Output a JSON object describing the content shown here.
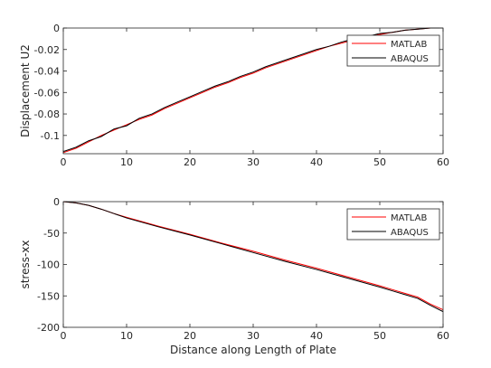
{
  "chart_data": [
    {
      "type": "line",
      "title": "",
      "xlabel": "",
      "ylabel": "Displacement U2",
      "xlim": [
        0,
        60
      ],
      "ylim": [
        -0.117,
        0
      ],
      "xticks": [
        "0",
        "10",
        "20",
        "30",
        "40",
        "50",
        "60"
      ],
      "yticks": [
        "0",
        "-0.02",
        "-0.04",
        "-0.06",
        "-0.08",
        "-0.1"
      ],
      "ytick_values": [
        0,
        -0.02,
        -0.04,
        -0.06,
        -0.08,
        -0.1
      ],
      "grid": false,
      "legend_position": "top-right",
      "series": [
        {
          "name": "MATLAB",
          "color": "#ff0000",
          "x": [
            0,
            2,
            4,
            6,
            8,
            10,
            12,
            14,
            16,
            18,
            20,
            22,
            24,
            26,
            28,
            30,
            32,
            34,
            36,
            38,
            40,
            42,
            44,
            46,
            48,
            50,
            52,
            54,
            56,
            58,
            60
          ],
          "y": [
            -0.116,
            -0.112,
            -0.106,
            -0.1,
            -0.095,
            -0.09,
            -0.085,
            -0.081,
            -0.075,
            -0.07,
            -0.065,
            -0.06,
            -0.055,
            -0.051,
            -0.046,
            -0.042,
            -0.037,
            -0.033,
            -0.029,
            -0.025,
            -0.021,
            -0.017,
            -0.014,
            -0.011,
            -0.008,
            -0.006,
            -0.004,
            -0.002,
            -0.001,
            0,
            0
          ]
        },
        {
          "name": "ABAQUS",
          "color": "#000000",
          "x": [
            0,
            2,
            4,
            6,
            8,
            10,
            12,
            14,
            16,
            18,
            20,
            22,
            24,
            26,
            28,
            30,
            32,
            34,
            36,
            38,
            40,
            42,
            44,
            46,
            48,
            50,
            52,
            54,
            56,
            58,
            60
          ],
          "y": [
            -0.115,
            -0.111,
            -0.105,
            -0.101,
            -0.094,
            -0.091,
            -0.084,
            -0.08,
            -0.074,
            -0.069,
            -0.064,
            -0.059,
            -0.054,
            -0.05,
            -0.045,
            -0.041,
            -0.036,
            -0.032,
            -0.028,
            -0.024,
            -0.02,
            -0.017,
            -0.013,
            -0.01,
            -0.008,
            -0.005,
            -0.004,
            -0.002,
            -0.001,
            0,
            0
          ]
        }
      ]
    },
    {
      "type": "line",
      "title": "",
      "xlabel": "Distance along Length of Plate",
      "ylabel": "stress-xx",
      "xlim": [
        0,
        60
      ],
      "ylim": [
        -200,
        0
      ],
      "xticks": [
        "0",
        "10",
        "20",
        "30",
        "40",
        "50",
        "60"
      ],
      "yticks": [
        "0",
        "-50",
        "-100",
        "-150",
        "-200"
      ],
      "ytick_values": [
        0,
        -50,
        -100,
        -150,
        -200
      ],
      "grid": false,
      "legend_position": "top-right",
      "series": [
        {
          "name": "MATLAB",
          "color": "#ff0000",
          "x": [
            0,
            2,
            4,
            6,
            8,
            10,
            15,
            20,
            25,
            30,
            35,
            40,
            45,
            50,
            52,
            54,
            56,
            58,
            60
          ],
          "y": [
            0,
            -2,
            -6,
            -12,
            -19,
            -25,
            -39,
            -52,
            -66,
            -79,
            -93,
            -106,
            -120,
            -134,
            -140,
            -146,
            -152,
            -163,
            -172
          ]
        },
        {
          "name": "ABAQUS",
          "color": "#000000",
          "x": [
            0,
            2,
            4,
            6,
            8,
            10,
            15,
            20,
            25,
            30,
            35,
            40,
            45,
            50,
            52,
            54,
            56,
            58,
            60
          ],
          "y": [
            0,
            -2,
            -6,
            -12,
            -19,
            -26,
            -40,
            -53,
            -67,
            -81,
            -95,
            -108,
            -122,
            -136,
            -142,
            -148,
            -154,
            -165,
            -175
          ]
        }
      ]
    }
  ]
}
